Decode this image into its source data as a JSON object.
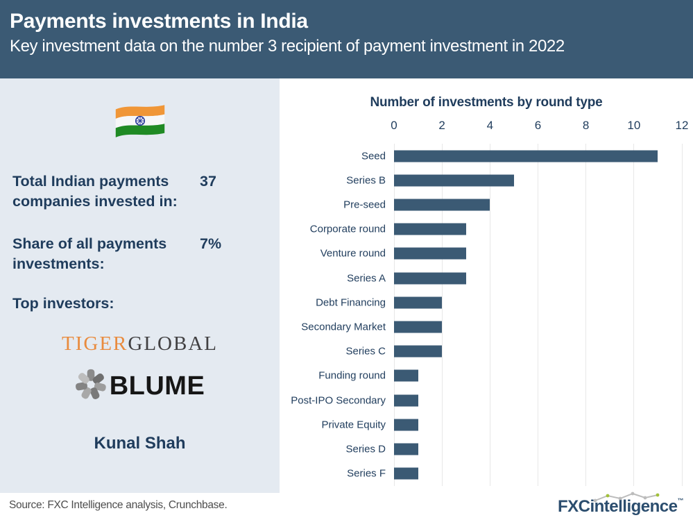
{
  "header": {
    "title": "Payments investments in India",
    "subtitle": "Key investment data on the number 3 recipient of payment investment in 2022"
  },
  "panel": {
    "flag": "india-flag",
    "stats": [
      {
        "label": "Total Indian payments companies invested in:",
        "value": "37"
      },
      {
        "label": "Share of all payments investments:",
        "value": "7%"
      }
    ],
    "top_investors_label": "Top investors:",
    "investors": {
      "tiger": {
        "part1": "TIGER",
        "part2": "GLOBAL"
      },
      "blume": {
        "text": "BLUME"
      },
      "person": "Kunal Shah"
    }
  },
  "chart_data": {
    "type": "bar",
    "orientation": "horizontal",
    "title": "Number of investments by round type",
    "categories": [
      "Seed",
      "Series B",
      "Pre-seed",
      "Corporate round",
      "Venture round",
      "Series A",
      "Debt Financing",
      "Secondary Market",
      "Series C",
      "Funding round",
      "Post-IPO Secondary",
      "Private Equity",
      "Series D",
      "Series F"
    ],
    "values": [
      11,
      5,
      4,
      3,
      3,
      3,
      2,
      2,
      2,
      1,
      1,
      1,
      1,
      1
    ],
    "xlabel": "",
    "ylabel": "",
    "xlim": [
      0,
      12
    ],
    "xticks": [
      0,
      2,
      4,
      6,
      8,
      10,
      12
    ],
    "grid": true,
    "legend": "none",
    "bar_color": "#3b5a74"
  },
  "footer": {
    "source": "Source: FXC Intelligence analysis, Crunchbase.",
    "logo": {
      "fxc": "FXC",
      "rest": "intelligence",
      "tm": "™"
    }
  },
  "colors": {
    "header_bg": "#3b5a74",
    "panel_bg": "#e4eaf1",
    "navy_text": "#1f3c5c",
    "bar": "#3b5a74",
    "grid_line": "#e7e7e7",
    "tiger_orange": "#e98b3e",
    "global_gray": "#414042",
    "blume_black": "#161616",
    "fxc_blue": "#2b4d6e",
    "fxc_green": "#a2c03a",
    "source_gray": "#4d4d4d"
  }
}
